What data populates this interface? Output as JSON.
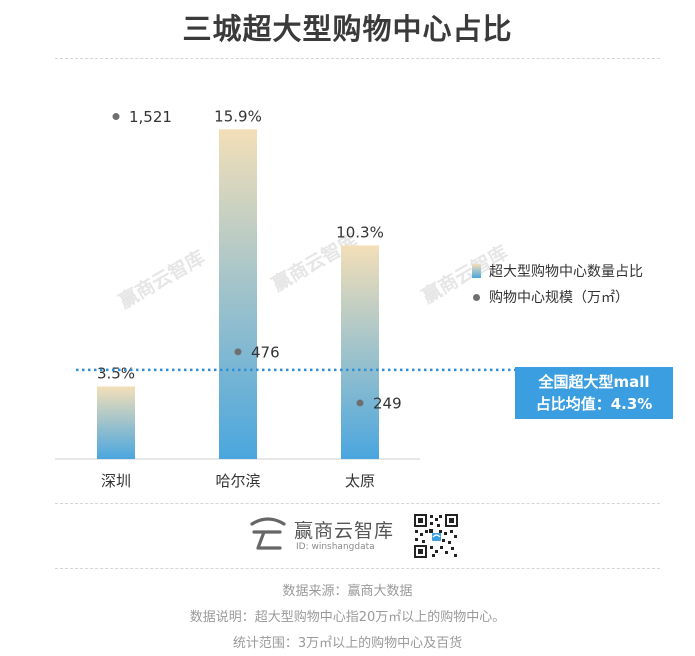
{
  "title": "三城超大型购物中心占比",
  "chart_data": {
    "type": "bar",
    "categories": [
      "深圳",
      "哈尔滨",
      "太原"
    ],
    "series": [
      {
        "name": "超大型购物中心数量占比",
        "type": "bar",
        "values": [
          3.5,
          15.9,
          10.3
        ],
        "labels": [
          "3.5%",
          "15.9%",
          "10.3%"
        ]
      },
      {
        "name": "购物中心规模（万㎡）",
        "type": "scatter",
        "values": [
          1521,
          476,
          249
        ],
        "labels": [
          "1,521",
          "476",
          "249"
        ]
      }
    ],
    "bar_ylim": [
      0,
      19
    ],
    "point_ylim": [
      0,
      1750
    ],
    "average_line": {
      "value": 4.3
    },
    "legend_position": "right",
    "grid": false
  },
  "average_box": {
    "line1": "全国超大型mall",
    "line2": "占比均值：4.3%"
  },
  "watermark": {
    "text": "赢商云智库"
  },
  "brand": {
    "name": "赢商云智库",
    "id": "ID: winshangdata"
  },
  "footer": {
    "source": "数据来源：赢商大数据",
    "note": "数据说明：超大型购物中心指20万㎡以上的购物中心。",
    "scope": "统计范围：3万㎡以上的购物中心及百货"
  },
  "colors": {
    "bar_top": "#f3dfb8",
    "bar_bottom": "#4aa6de",
    "dot": "#6f6f6f",
    "avg_line": "#2f8fd8",
    "avg_box": "#3b9ee0"
  }
}
